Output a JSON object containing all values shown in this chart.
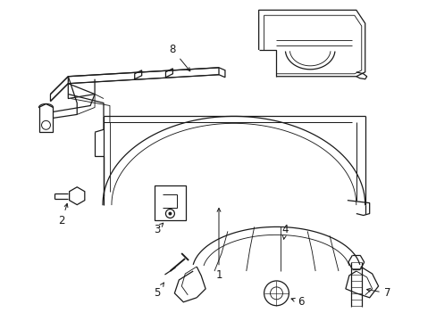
{
  "background_color": "#ffffff",
  "line_color": "#1a1a1a",
  "line_width": 0.9,
  "figsize": [
    4.89,
    3.6
  ],
  "dpi": 100
}
